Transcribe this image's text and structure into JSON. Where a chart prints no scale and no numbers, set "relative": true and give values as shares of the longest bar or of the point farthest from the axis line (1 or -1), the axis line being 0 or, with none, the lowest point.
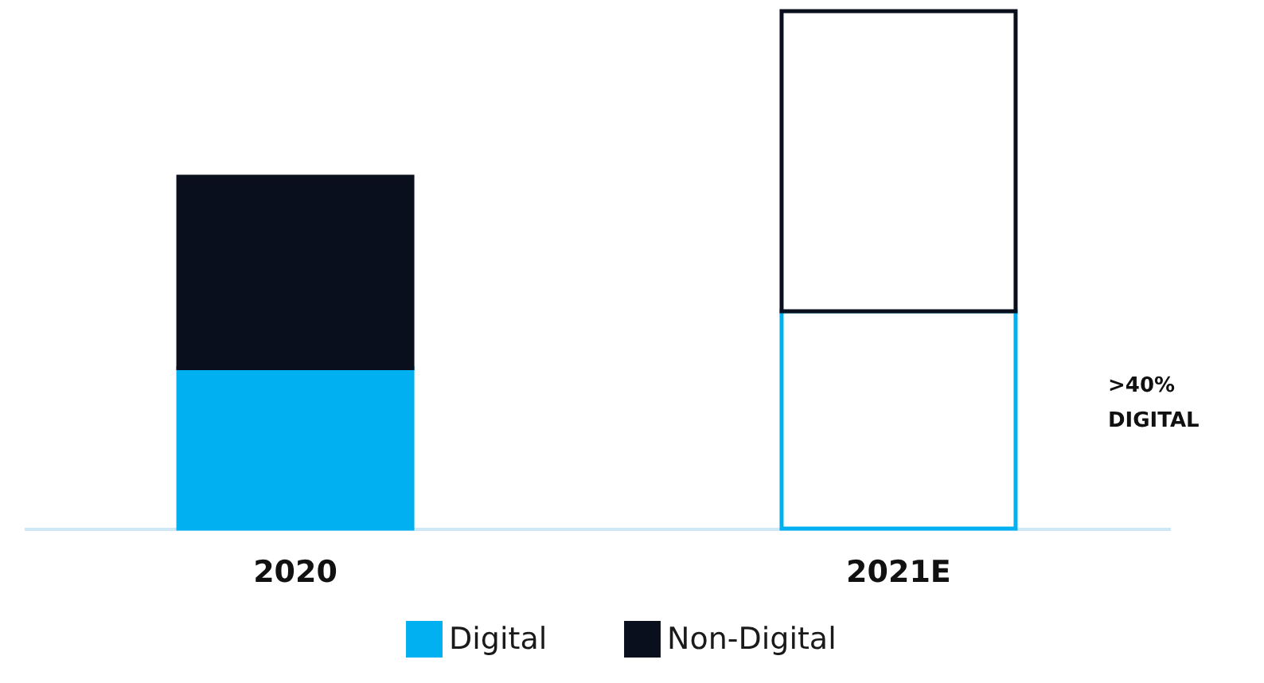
{
  "chart_data": {
    "type": "bar",
    "stacked": true,
    "relative": true,
    "categories": [
      "2020",
      "2021E"
    ],
    "series": [
      {
        "name": "Digital",
        "color": "#00b0f0",
        "colors": [
          "#00b0f0",
          "#ffffff"
        ],
        "values": [
          0.31,
          0.42
        ]
      },
      {
        "name": "Non-Digital",
        "color": "#0a0f1e",
        "colors": [
          "#0a0f1e",
          "#ffffff"
        ],
        "values": [
          0.37,
          0.58
        ]
      }
    ],
    "annotations": [
      ">40%\nDIGITAL"
    ],
    "legend": "bottom",
    "grid": false
  }
}
